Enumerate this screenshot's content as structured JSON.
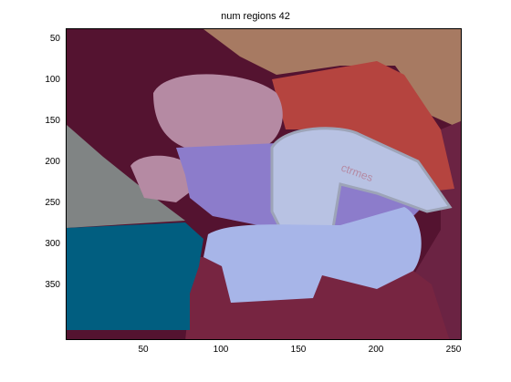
{
  "figure": {
    "title": "num regions 42"
  },
  "axes": {
    "x_ticks": [
      "50",
      "100",
      "150",
      "200",
      "250"
    ],
    "y_ticks": [
      "50",
      "100",
      "150",
      "200",
      "250",
      "300",
      "350"
    ]
  },
  "segment_colors": {
    "background_dark": "#541330",
    "top_right_tan": "#A77A62",
    "head_mauve": "#B58AA3",
    "torso_red": "#B5443F",
    "gray_left": "#808484",
    "teal": "#015E80",
    "purple": "#8C7CCB",
    "light_blue": "#A7B5E8",
    "pale_blue": "#B8C2E3",
    "bottom_maroon": "#772541",
    "right_maroon": "#6B2343"
  },
  "image_text": {
    "shirt_lettering": "ctrmes"
  }
}
